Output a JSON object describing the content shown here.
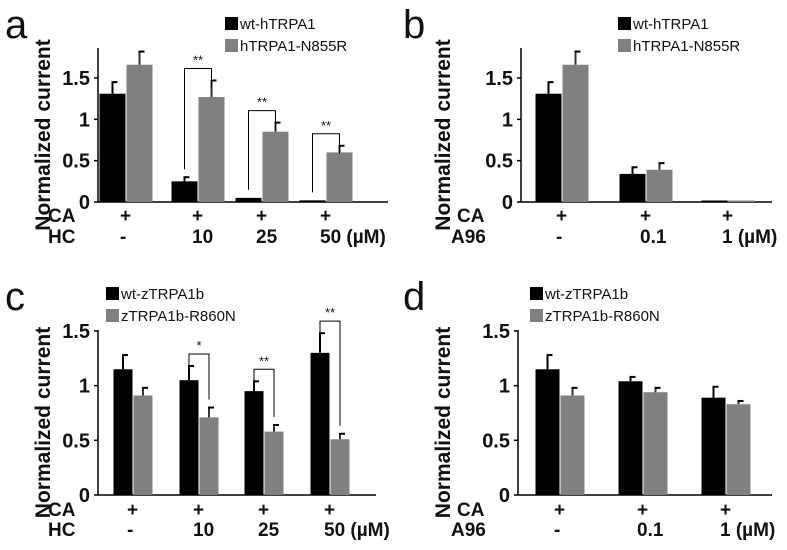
{
  "chart_data": [
    {
      "panel": "a",
      "type": "bar",
      "ylabel": "Normalized current",
      "ylim": [
        0,
        1.8
      ],
      "yticks": [
        "0",
        "0.5",
        "1",
        "1.5"
      ],
      "ytick_values": [
        0,
        0.5,
        1,
        1.5
      ],
      "condition_rows": [
        {
          "label": "CA",
          "values": [
            "+",
            "+",
            "+",
            "+"
          ]
        },
        {
          "label": "HC",
          "values": [
            "-",
            "10",
            "25",
            "50 (µM)"
          ]
        }
      ],
      "legend": "top-right",
      "series": [
        {
          "name": "wt-hTRPA1",
          "color": "#000000",
          "values": [
            1.31,
            0.25,
            0.05,
            0.02
          ],
          "errors": [
            0.14,
            0.05,
            0.0,
            0.0
          ]
        },
        {
          "name": "hTRPA1-N855R",
          "color": "#808080",
          "values": [
            1.66,
            1.27,
            0.85,
            0.6
          ],
          "errors": [
            0.16,
            0.2,
            0.11,
            0.08
          ]
        }
      ],
      "significance": [
        {
          "group": 1,
          "label": "**"
        },
        {
          "group": 2,
          "label": "**"
        },
        {
          "group": 3,
          "label": "**"
        }
      ]
    },
    {
      "panel": "b",
      "type": "bar",
      "ylabel": "Normalized current",
      "ylim": [
        0,
        1.8
      ],
      "yticks": [
        "0",
        "0.5",
        "1",
        "1.5"
      ],
      "ytick_values": [
        0,
        0.5,
        1,
        1.5
      ],
      "condition_rows": [
        {
          "label": "CA",
          "values": [
            "+",
            "+",
            "+"
          ]
        },
        {
          "label": "A96",
          "values": [
            "-",
            "0.1",
            "1 (µM)"
          ]
        }
      ],
      "legend": "top-right",
      "series": [
        {
          "name": "wt-hTRPA1",
          "color": "#000000",
          "values": [
            1.31,
            0.34,
            0.01
          ],
          "errors": [
            0.14,
            0.08,
            0.0
          ]
        },
        {
          "name": "hTRPA1-N855R",
          "color": "#808080",
          "values": [
            1.66,
            0.39,
            0.005
          ],
          "errors": [
            0.16,
            0.08,
            0.0
          ]
        }
      ],
      "significance": []
    },
    {
      "panel": "c",
      "type": "bar",
      "ylabel": "Normalized current",
      "ylim": [
        0,
        1.5
      ],
      "yticks": [
        "0",
        "0.5",
        "1",
        "1.5"
      ],
      "ytick_values": [
        0,
        0.5,
        1,
        1.5
      ],
      "condition_rows": [
        {
          "label": "CA",
          "values": [
            "+",
            "+",
            "+",
            "+"
          ]
        },
        {
          "label": "HC",
          "values": [
            "-",
            "10",
            "25",
            "50 (µM)"
          ]
        }
      ],
      "legend": "top-left",
      "series": [
        {
          "name": "wt-zTRPA1b",
          "color": "#000000",
          "values": [
            1.15,
            1.05,
            0.95,
            1.3
          ],
          "errors": [
            0.13,
            0.13,
            0.09,
            0.18
          ]
        },
        {
          "name": "zTRPA1b-R860N",
          "color": "#808080",
          "values": [
            0.91,
            0.71,
            0.58,
            0.51
          ],
          "errors": [
            0.07,
            0.09,
            0.06,
            0.05
          ]
        }
      ],
      "significance": [
        {
          "group": 1,
          "label": "*"
        },
        {
          "group": 2,
          "label": "**"
        },
        {
          "group": 3,
          "label": "**"
        }
      ]
    },
    {
      "panel": "d",
      "type": "bar",
      "ylabel": "Normalized current",
      "ylim": [
        0,
        1.5
      ],
      "yticks": [
        "0",
        "0.5",
        "1",
        "1.5"
      ],
      "ytick_values": [
        0,
        0.5,
        1,
        1.5
      ],
      "condition_rows": [
        {
          "label": "CA",
          "values": [
            "+",
            "+",
            "+"
          ]
        },
        {
          "label": "A96",
          "values": [
            "-",
            "0.1",
            "1 (µM)"
          ]
        }
      ],
      "legend": "top-left",
      "series": [
        {
          "name": "wt-zTRPA1b",
          "color": "#000000",
          "values": [
            1.15,
            1.04,
            0.89
          ],
          "errors": [
            0.13,
            0.04,
            0.1
          ]
        },
        {
          "name": "zTRPA1b-R860N",
          "color": "#808080",
          "values": [
            0.91,
            0.94,
            0.83
          ],
          "errors": [
            0.07,
            0.04,
            0.03
          ]
        }
      ],
      "significance": []
    }
  ]
}
